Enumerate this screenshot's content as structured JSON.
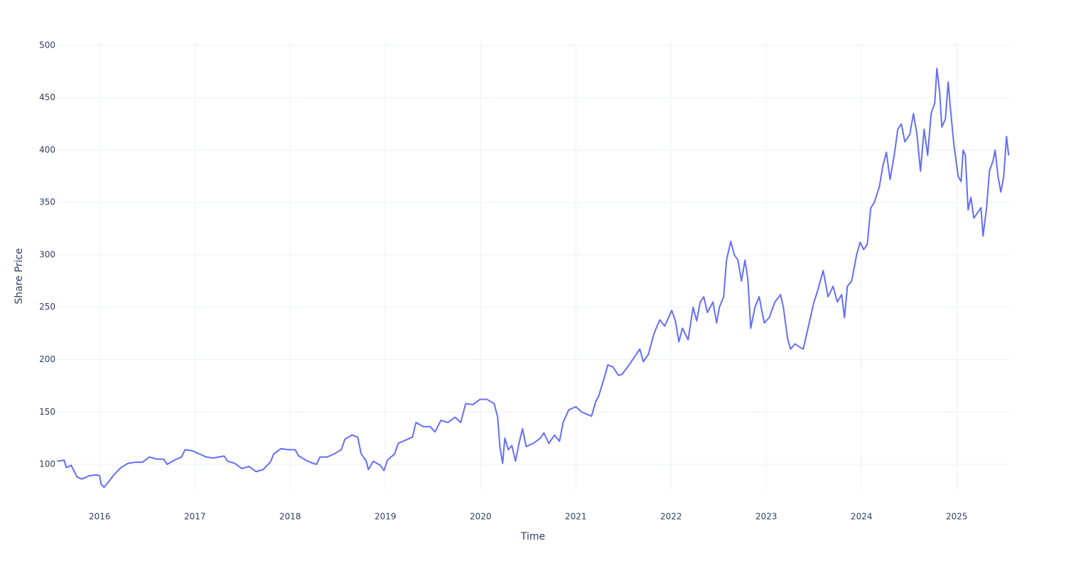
{
  "chart_data": {
    "type": "line",
    "x_label": "Time",
    "y_label": "Share Price",
    "color": "#636efa",
    "grid": true,
    "xlim": [
      2015.55,
      2025.55
    ],
    "xticks": [
      2016,
      2017,
      2018,
      2019,
      2020,
      2021,
      2022,
      2023,
      2024,
      2025
    ],
    "ylim": [
      75.6,
      502.7
    ],
    "yticks": [
      100,
      150,
      200,
      250,
      300,
      350,
      400,
      450,
      500
    ],
    "x": [
      2015.552,
      2015.627,
      2015.649,
      2015.701,
      2015.739,
      2015.761,
      2015.813,
      2015.888,
      2015.963,
      2016.0,
      2016.015,
      2016.045,
      2016.09,
      2016.149,
      2016.224,
      2016.299,
      2016.373,
      2016.448,
      2016.522,
      2016.597,
      2016.672,
      2016.709,
      2016.784,
      2016.858,
      2016.896,
      2016.97,
      2017.045,
      2017.119,
      2017.194,
      2017.306,
      2017.343,
      2017.418,
      2017.493,
      2017.567,
      2017.642,
      2017.716,
      2017.791,
      2017.828,
      2017.903,
      2017.978,
      2018.052,
      2018.09,
      2018.164,
      2018.239,
      2018.276,
      2018.313,
      2018.388,
      2018.463,
      2018.537,
      2018.575,
      2018.649,
      2018.709,
      2018.746,
      2018.799,
      2018.821,
      2018.873,
      2018.948,
      2018.985,
      2019.022,
      2019.097,
      2019.134,
      2019.209,
      2019.284,
      2019.321,
      2019.396,
      2019.47,
      2019.522,
      2019.582,
      2019.657,
      2019.731,
      2019.791,
      2019.843,
      2019.918,
      2019.993,
      2020.067,
      2020.142,
      2020.179,
      2020.201,
      2020.231,
      2020.254,
      2020.291,
      2020.328,
      2020.366,
      2020.403,
      2020.44,
      2020.478,
      2020.552,
      2020.627,
      2020.664,
      2020.716,
      2020.776,
      2020.828,
      2020.866,
      2020.925,
      2021.0,
      2021.06,
      2021.112,
      2021.164,
      2021.209,
      2021.239,
      2021.299,
      2021.336,
      2021.388,
      2021.448,
      2021.485,
      2021.56,
      2021.634,
      2021.672,
      2021.709,
      2021.761,
      2021.821,
      2021.881,
      2021.933,
      2022.007,
      2022.045,
      2022.082,
      2022.119,
      2022.179,
      2022.231,
      2022.269,
      2022.306,
      2022.343,
      2022.381,
      2022.44,
      2022.478,
      2022.507,
      2022.552,
      2022.582,
      2022.627,
      2022.664,
      2022.701,
      2022.739,
      2022.776,
      2022.806,
      2022.836,
      2022.881,
      2022.925,
      2022.978,
      2023.03,
      2023.09,
      2023.149,
      2023.179,
      2023.224,
      2023.254,
      2023.299,
      2023.351,
      2023.388,
      2023.425,
      2023.463,
      2023.5,
      2023.537,
      2023.597,
      2023.649,
      2023.701,
      2023.746,
      2023.791,
      2023.821,
      2023.851,
      2023.896,
      2023.948,
      2023.985,
      2024.022,
      2024.06,
      2024.097,
      2024.134,
      2024.187,
      2024.224,
      2024.261,
      2024.299,
      2024.343,
      2024.381,
      2024.418,
      2024.455,
      2024.507,
      2024.545,
      2024.582,
      2024.619,
      2024.657,
      2024.694,
      2024.731,
      2024.769,
      2024.791,
      2024.821,
      2024.843,
      2024.881,
      2024.91,
      2024.933,
      2024.97,
      2025.015,
      2025.045,
      2025.067,
      2025.09,
      2025.119,
      2025.149,
      2025.179,
      2025.216,
      2025.254,
      2025.276,
      2025.313,
      2025.343,
      2025.381,
      2025.403,
      2025.433,
      2025.463,
      2025.493,
      2025.522,
      2025.545
    ],
    "values": [
      103,
      104,
      97,
      99,
      92,
      88,
      86,
      89,
      90,
      89,
      81,
      78,
      83,
      90,
      97,
      101,
      102,
      102,
      107,
      105,
      105,
      100,
      104,
      107,
      114,
      113,
      110,
      107,
      106,
      108,
      103,
      101,
      96,
      98,
      93,
      95,
      102,
      110,
      115,
      114,
      114,
      108,
      104,
      101,
      100,
      107,
      107,
      110,
      114,
      124,
      128,
      126,
      110,
      103,
      95,
      103,
      99,
      94,
      104,
      110,
      120,
      123,
      126,
      140,
      136,
      136,
      131,
      142,
      140,
      145,
      140,
      158,
      157,
      162,
      162,
      158,
      145,
      118,
      101,
      125,
      114,
      118,
      103,
      120,
      134,
      117,
      120,
      125,
      130,
      120,
      128,
      122,
      140,
      152,
      155,
      150,
      148,
      146,
      160,
      165,
      183,
      195,
      193,
      185,
      186,
      195,
      205,
      210,
      198,
      205,
      225,
      238,
      232,
      247,
      237,
      217,
      230,
      219,
      250,
      237,
      255,
      260,
      245,
      255,
      235,
      250,
      260,
      295,
      313,
      300,
      295,
      275,
      295,
      277,
      230,
      250,
      260,
      235,
      240,
      255,
      262,
      250,
      220,
      210,
      215,
      212,
      210,
      225,
      240,
      255,
      265,
      285,
      260,
      270,
      255,
      262,
      240,
      270,
      275,
      300,
      312,
      305,
      310,
      345,
      350,
      365,
      385,
      398,
      372,
      395,
      420,
      425,
      408,
      415,
      435,
      415,
      380,
      420,
      395,
      435,
      445,
      478,
      455,
      422,
      430,
      465,
      440,
      405,
      375,
      370,
      400,
      395,
      343,
      355,
      335,
      340,
      345,
      318,
      345,
      380,
      390,
      400,
      375,
      360,
      375,
      413,
      395
    ]
  }
}
